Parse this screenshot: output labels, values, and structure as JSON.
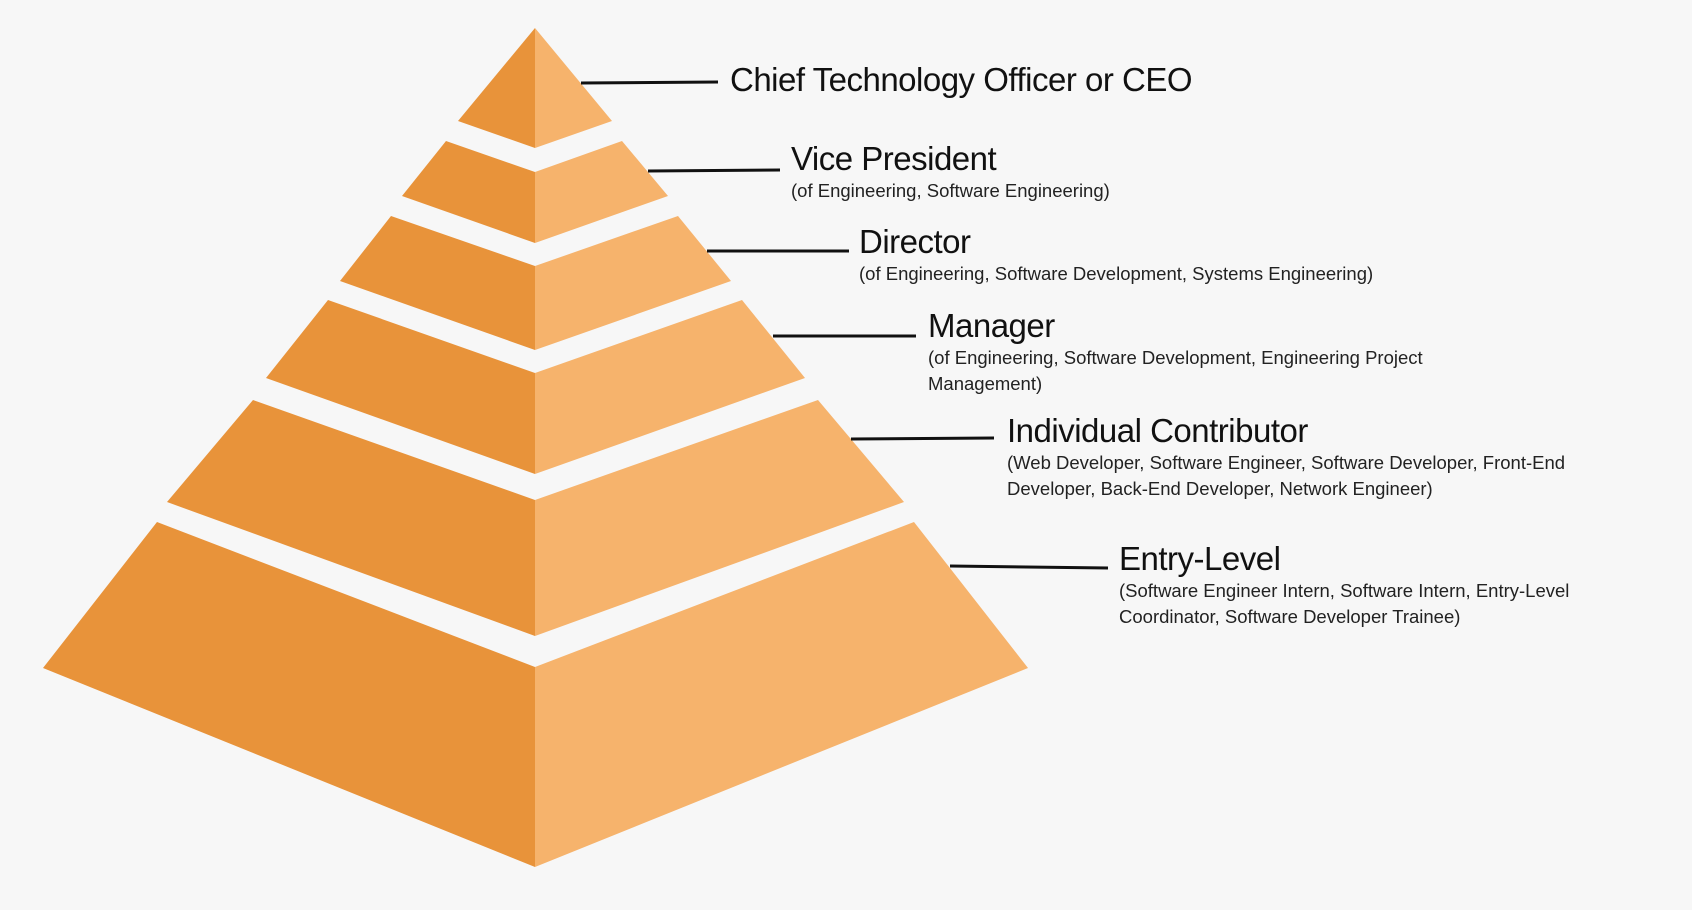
{
  "colors": {
    "background": "#f7f7f7",
    "pyramid_left_face": "#e8933a",
    "pyramid_right_face": "#f6b36c",
    "connector_line": "#111111"
  },
  "tiers": [
    {
      "title": "Chief Technology Officer or CEO",
      "description": ""
    },
    {
      "title": "Vice President",
      "description": "(of Engineering, Software Engineering)"
    },
    {
      "title": "Director",
      "description": "(of Engineering, Software Development, Systems Engineering)"
    },
    {
      "title": "Manager",
      "description": "(of Engineering, Software Development, Engineering Project Management)"
    },
    {
      "title": "Individual Contributor",
      "description": "(Web Developer, Software Engineer, Software Developer, Front-End Developer, Back-End Developer, Network Engineer)"
    },
    {
      "title": "Entry-Level",
      "description": "(Software Engineer Intern, Software Intern, Entry-Level Coordinator, Software Developer Trainee)"
    }
  ]
}
